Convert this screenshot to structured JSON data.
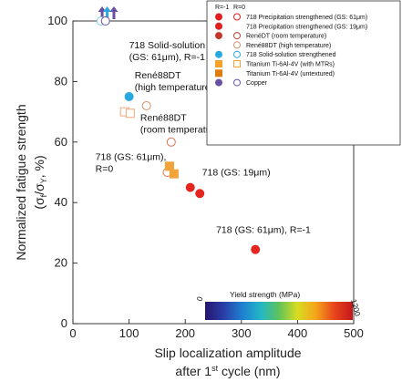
{
  "chart_data": {
    "type": "scatter",
    "xlabel_line1": "Slip localization amplitude",
    "xlabel_line2_pre": "after 1",
    "xlabel_line2_sup": "st",
    "xlabel_line2_post": " cycle (nm)",
    "ylabel_line1": "Normalized fatigue strength",
    "ylabel_line2_open": "(σ",
    "ylabel_line2_sub1": "f",
    "ylabel_line2_mid": "/σ",
    "ylabel_line2_sub2": "Y",
    "ylabel_line2_close": ", %)",
    "xlim": [
      0,
      500
    ],
    "ylim": [
      0,
      100
    ],
    "xticks": [
      "0",
      "100",
      "200",
      "300",
      "400",
      "500"
    ],
    "yticks": [
      "0",
      "20",
      "40",
      "60",
      "80",
      "100"
    ],
    "legend": {
      "header_filled": "R=-1",
      "header_open": "R=0",
      "entries": [
        {
          "label": "718 Precipitation strengthened (GS: 61μm)",
          "filled": true,
          "open": true,
          "marker": "circle",
          "color": "#e02020"
        },
        {
          "label": "718 Precipitation strengthened (GS: 19μm)",
          "filled": true,
          "open": false,
          "marker": "circle",
          "color": "#e02020"
        },
        {
          "label": "RenéDT (room temperature)",
          "filled": true,
          "open": true,
          "marker": "circle",
          "color": "#c0392b"
        },
        {
          "label": "René88DT (high temperature)",
          "filled": false,
          "open": true,
          "marker": "circle",
          "color": "#d4906a"
        },
        {
          "label": "718 Solid-solution strengthened",
          "filled": true,
          "open": true,
          "marker": "circle",
          "color": "#29a9e0"
        },
        {
          "label": "Titanium Ti-6Al-4V (with MTRs)",
          "filled": true,
          "open": true,
          "marker": "square",
          "color": "#f5a12b"
        },
        {
          "label": "Titanium Ti-6Al-4V (untextured)",
          "filled": true,
          "open": false,
          "marker": "square",
          "color": "#e07b10"
        },
        {
          "label": "Copper",
          "filled": true,
          "open": true,
          "marker": "circle",
          "color": "#6a4fa0"
        }
      ]
    },
    "series": [
      {
        "marker": "circle",
        "filled": true,
        "color": "#e52620",
        "points": [
          {
            "x": 325,
            "y": 24.5
          }
        ]
      },
      {
        "marker": "circle",
        "filled": true,
        "color": "#e52620",
        "points": [
          {
            "x": 209,
            "y": 45
          },
          {
            "x": 226,
            "y": 43
          }
        ]
      },
      {
        "marker": "circle",
        "filled": false,
        "color": "#e07050",
        "points": [
          {
            "x": 168,
            "y": 50
          },
          {
            "x": 175,
            "y": 60
          }
        ]
      },
      {
        "marker": "circle",
        "filled": false,
        "color": "#d4906a",
        "points": [
          {
            "x": 131,
            "y": 72
          }
        ]
      },
      {
        "marker": "circle",
        "filled": true,
        "color": "#2aa9e0",
        "points": [
          {
            "x": 100,
            "y": 75
          }
        ]
      },
      {
        "marker": "circle",
        "filled": false,
        "color": "#7fc9ea",
        "points": [
          {
            "x": 50,
            "y": 100
          }
        ]
      },
      {
        "marker": "square",
        "filled": false,
        "color": "#f0a878",
        "points": [
          {
            "x": 92,
            "y": 70
          },
          {
            "x": 102,
            "y": 69.5
          }
        ]
      },
      {
        "marker": "square",
        "filled": true,
        "color": "#f2a33a",
        "points": [
          {
            "x": 172,
            "y": 52
          },
          {
            "x": 180,
            "y": 49.5
          }
        ]
      },
      {
        "marker": "circle",
        "filled": false,
        "color": "#6a4fa0",
        "points": [
          {
            "x": 58,
            "y": 100
          }
        ]
      }
    ],
    "arrows": [
      {
        "x": 52,
        "color": "#6a4fa0"
      },
      {
        "x": 61,
        "color": "#29a9e0"
      },
      {
        "x": 73,
        "color": "#6a4fa0"
      }
    ],
    "annotations": [
      {
        "lines": [
          "718 Solid-solution",
          "(GS: 61μm), R=-1"
        ],
        "x": 100,
        "y": 91
      },
      {
        "lines": [
          "René88DT",
          "(high temperature)"
        ],
        "x": 110,
        "y": 81
      },
      {
        "lines": [
          "René88DT",
          "(room temperature)"
        ],
        "x": 120,
        "y": 67
      },
      {
        "lines": [
          "718 (GS: 61μm),",
          "R=0"
        ],
        "x": 40,
        "y": 54
      },
      {
        "lines": [
          "718 (GS: 19μm)"
        ],
        "x": 230,
        "y": 49
      },
      {
        "lines": [
          "718 (GS: 61μm), R=-1"
        ],
        "x": 255,
        "y": 30
      }
    ],
    "colorbar": {
      "label": "Yield strength (MPa)",
      "min_label": "0",
      "max_label": "1200",
      "stops": [
        "#26156e",
        "#2a3ea8",
        "#1e7fd0",
        "#22b6c8",
        "#5fc25a",
        "#d8dc20",
        "#f5a41a",
        "#e8451c",
        "#c4161c"
      ]
    }
  }
}
